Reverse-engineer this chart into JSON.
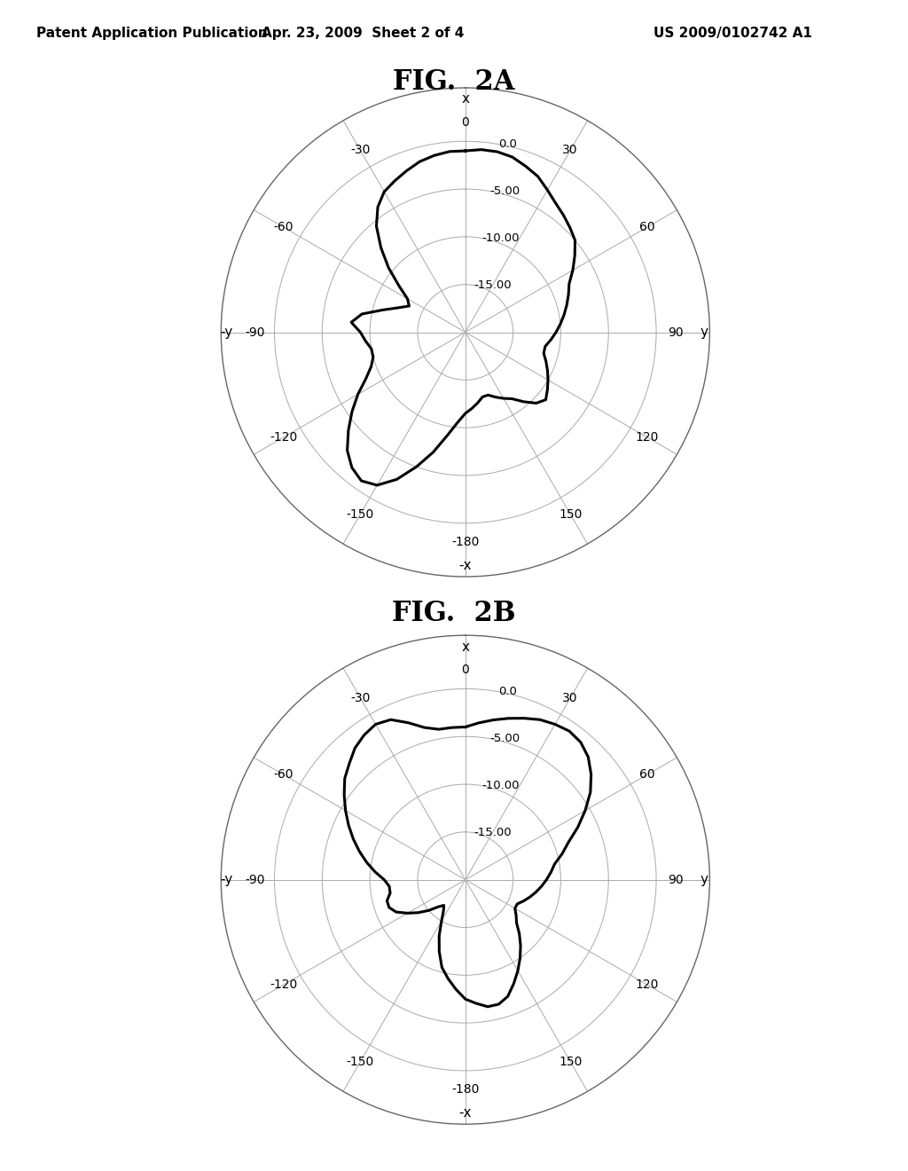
{
  "fig2a_title": "FIG.  2A",
  "fig2b_title": "FIG.  2B",
  "header_left": "Patent Application Publication",
  "header_mid": "Apr. 23, 2009  Sheet 2 of 4",
  "header_right": "US 2009/0102742 A1",
  "radial_labels": [
    "0.0",
    "-5.00",
    "-10.00",
    "-15.00"
  ],
  "radial_values": [
    0.0,
    -5.0,
    -10.0,
    -15.0
  ],
  "rmin": -20.0,
  "rmax": 0.0,
  "background_color": "#ffffff",
  "line_color": "#000000",
  "grid_color": "#aaaaaa",
  "title_fontsize": 22,
  "header_fontsize": 11,
  "fig2a_angles": [
    0,
    5,
    10,
    15,
    20,
    25,
    30,
    35,
    40,
    45,
    50,
    55,
    60,
    65,
    70,
    75,
    80,
    85,
    90,
    95,
    100,
    105,
    110,
    115,
    120,
    125,
    130,
    135,
    140,
    145,
    150,
    155,
    160,
    165,
    170,
    175,
    180,
    185,
    190,
    195,
    200,
    205,
    210,
    215,
    220,
    225,
    230,
    235,
    240,
    245,
    250,
    255,
    260,
    265,
    270,
    275,
    280,
    285,
    290,
    295,
    300,
    305,
    310,
    315,
    320,
    325,
    330,
    335,
    340,
    345,
    350,
    355,
    360
  ],
  "fig2a_db": [
    -1.0,
    -0.8,
    -0.8,
    -1.0,
    -1.5,
    -2.0,
    -2.8,
    -3.5,
    -4.0,
    -4.5,
    -5.0,
    -6.0,
    -7.0,
    -8.0,
    -8.5,
    -9.0,
    -9.5,
    -10.0,
    -10.5,
    -11.0,
    -11.5,
    -11.5,
    -11.0,
    -10.5,
    -10.0,
    -9.5,
    -9.0,
    -9.5,
    -10.5,
    -11.5,
    -12.0,
    -12.5,
    -13.0,
    -13.0,
    -12.5,
    -12.0,
    -11.5,
    -10.5,
    -9.0,
    -7.0,
    -5.0,
    -3.0,
    -1.5,
    -1.0,
    -1.5,
    -2.5,
    -4.0,
    -5.5,
    -7.0,
    -8.5,
    -9.5,
    -10.0,
    -10.0,
    -9.5,
    -9.0,
    -8.0,
    -9.0,
    -11.0,
    -12.5,
    -13.5,
    -13.0,
    -11.5,
    -9.5,
    -7.5,
    -5.5,
    -4.0,
    -3.0,
    -2.5,
    -2.0,
    -1.5,
    -1.2,
    -1.0,
    -1.0
  ],
  "fig2b_angles": [
    0,
    5,
    10,
    15,
    20,
    25,
    30,
    35,
    40,
    45,
    50,
    55,
    60,
    65,
    70,
    75,
    80,
    85,
    90,
    95,
    100,
    105,
    110,
    115,
    120,
    125,
    130,
    135,
    140,
    145,
    150,
    155,
    160,
    165,
    170,
    175,
    180,
    185,
    190,
    195,
    200,
    205,
    210,
    215,
    220,
    225,
    230,
    235,
    240,
    245,
    250,
    255,
    260,
    265,
    270,
    275,
    280,
    285,
    290,
    295,
    300,
    305,
    310,
    315,
    320,
    325,
    330,
    335,
    340,
    345,
    350,
    355,
    360
  ],
  "fig2b_db": [
    -4.0,
    -3.5,
    -3.0,
    -2.5,
    -2.0,
    -1.5,
    -1.2,
    -1.0,
    -1.2,
    -1.8,
    -2.8,
    -4.0,
    -5.5,
    -7.0,
    -8.5,
    -9.5,
    -10.5,
    -11.0,
    -11.5,
    -12.0,
    -12.5,
    -13.0,
    -13.5,
    -14.0,
    -14.0,
    -13.5,
    -13.0,
    -12.0,
    -11.0,
    -10.0,
    -9.0,
    -8.0,
    -7.0,
    -6.5,
    -6.5,
    -7.0,
    -7.5,
    -8.5,
    -9.5,
    -10.5,
    -12.0,
    -13.5,
    -15.0,
    -16.0,
    -16.5,
    -16.0,
    -15.0,
    -14.0,
    -13.0,
    -12.0,
    -11.5,
    -11.5,
    -12.0,
    -12.0,
    -11.5,
    -10.5,
    -9.5,
    -8.5,
    -7.5,
    -6.5,
    -5.5,
    -4.5,
    -3.5,
    -2.8,
    -2.0,
    -1.5,
    -1.2,
    -1.5,
    -2.5,
    -3.5,
    -4.0,
    -4.0,
    -4.0
  ]
}
